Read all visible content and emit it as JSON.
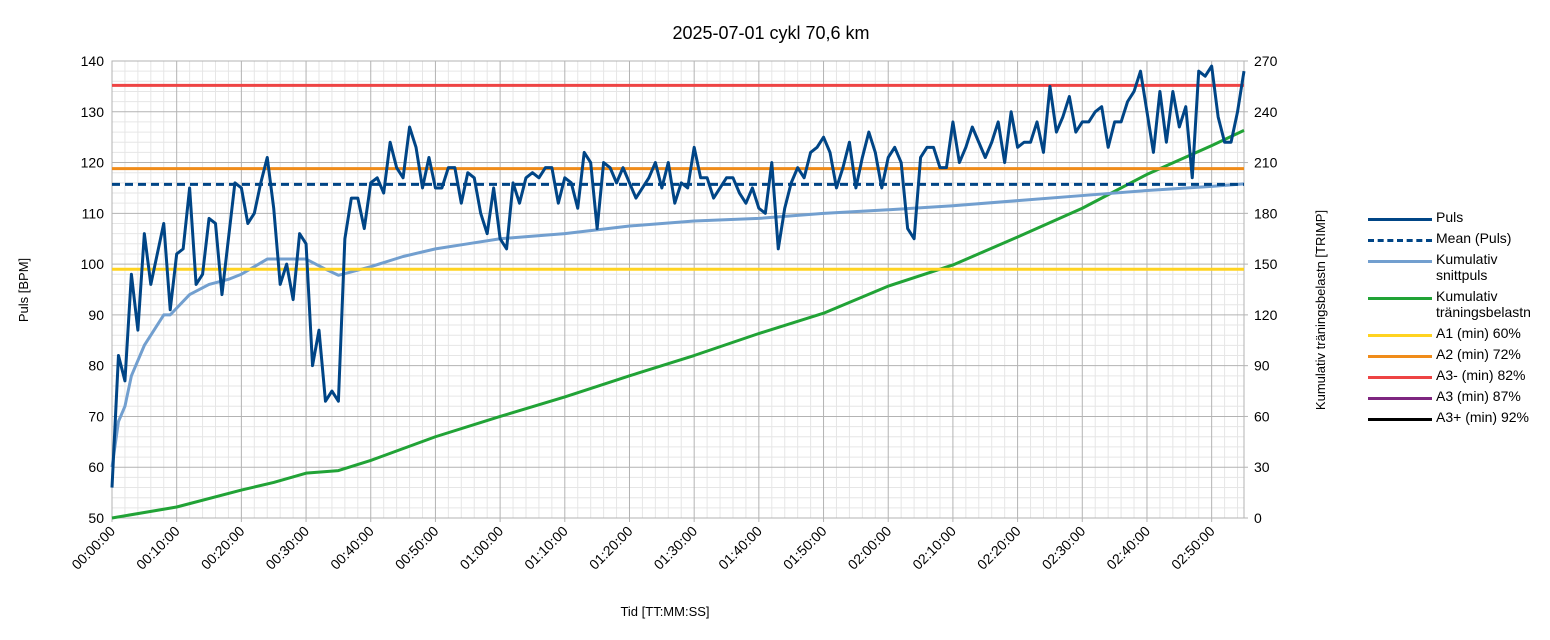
{
  "chart_data": {
    "type": "line",
    "title": "2025-07-01 cykl 70,6 km",
    "x_label": "Tid [TT:MM:SS]",
    "y_label": "Puls [BPM]",
    "y2_label": "Kumulativ träningsbelastn [TRIMP]",
    "xlim": [
      0,
      175
    ],
    "xticks": [
      {
        "value": 0,
        "label": "00:00:00"
      },
      {
        "value": 10,
        "label": "00:10:00"
      },
      {
        "value": 20,
        "label": "00:20:00"
      },
      {
        "value": 30,
        "label": "00:30:00"
      },
      {
        "value": 40,
        "label": "00:40:00"
      },
      {
        "value": 50,
        "label": "00:50:00"
      },
      {
        "value": 60,
        "label": "01:00:00"
      },
      {
        "value": 70,
        "label": "01:10:00"
      },
      {
        "value": 80,
        "label": "01:20:00"
      },
      {
        "value": 90,
        "label": "01:30:00"
      },
      {
        "value": 100,
        "label": "01:40:00"
      },
      {
        "value": 110,
        "label": "01:50:00"
      },
      {
        "value": 120,
        "label": "02:00:00"
      },
      {
        "value": 130,
        "label": "02:10:00"
      },
      {
        "value": 140,
        "label": "02:20:00"
      },
      {
        "value": 150,
        "label": "02:30:00"
      },
      {
        "value": 160,
        "label": "02:40:00"
      },
      {
        "value": 170,
        "label": "02:50:00"
      }
    ],
    "ylim": [
      50,
      140
    ],
    "yticks": [
      50,
      60,
      70,
      80,
      90,
      100,
      110,
      120,
      130,
      140
    ],
    "y2lim": [
      0,
      270
    ],
    "y2ticks": [
      0,
      30,
      60,
      90,
      120,
      150,
      180,
      210,
      240,
      270
    ],
    "grid": true,
    "minor_grid": true,
    "legend": "right",
    "series": [
      {
        "name": "Puls",
        "color": "#004586",
        "x": [
          0,
          1,
          2,
          3,
          4,
          5,
          6,
          7,
          8,
          9,
          10,
          11,
          12,
          13,
          14,
          15,
          16,
          17,
          18,
          19,
          20,
          21,
          22,
          23,
          24,
          25,
          26,
          27,
          28,
          29,
          30,
          31,
          32,
          33,
          34,
          35,
          36,
          37,
          38,
          39,
          40,
          41,
          42,
          43,
          44,
          45,
          46,
          47,
          48,
          49,
          50,
          51,
          52,
          53,
          54,
          55,
          56,
          57,
          58,
          59,
          60,
          61,
          62,
          63,
          64,
          65,
          66,
          67,
          68,
          69,
          70,
          71,
          72,
          73,
          74,
          75,
          76,
          77,
          78,
          79,
          80,
          81,
          82,
          83,
          84,
          85,
          86,
          87,
          88,
          89,
          90,
          91,
          92,
          93,
          94,
          95,
          96,
          97,
          98,
          99,
          100,
          101,
          102,
          103,
          104,
          105,
          106,
          107,
          108,
          109,
          110,
          111,
          112,
          113,
          114,
          115,
          116,
          117,
          118,
          119,
          120,
          121,
          122,
          123,
          124,
          125,
          126,
          127,
          128,
          129,
          130,
          131,
          132,
          133,
          134,
          135,
          136,
          137,
          138,
          139,
          140,
          141,
          142,
          143,
          144,
          145,
          146,
          147,
          148,
          149,
          150,
          151,
          152,
          153,
          154,
          155,
          156,
          157,
          158,
          159,
          160,
          161,
          162,
          163,
          164,
          165,
          166,
          167,
          168,
          169,
          170,
          171,
          172,
          173,
          174,
          175
        ],
        "values": [
          56,
          82,
          77,
          98,
          87,
          106,
          96,
          102,
          108,
          91,
          102,
          103,
          115,
          96,
          98,
          109,
          108,
          94,
          105,
          116,
          115,
          108,
          110,
          116,
          121,
          111,
          96,
          100,
          93,
          106,
          104,
          80,
          87,
          73,
          75,
          73,
          105,
          113,
          113,
          107,
          116,
          117,
          114,
          124,
          119,
          117,
          127,
          123,
          115,
          121,
          115,
          115,
          119,
          119,
          112,
          118,
          117,
          110,
          106,
          115,
          105,
          103,
          116,
          112,
          117,
          118,
          117,
          119,
          119,
          112,
          117,
          116,
          111,
          122,
          120,
          107,
          120,
          119,
          116,
          119,
          116,
          113,
          115,
          117,
          120,
          115,
          120,
          112,
          116,
          115,
          123,
          117,
          117,
          113,
          115,
          117,
          117,
          114,
          112,
          115,
          111,
          110,
          120,
          103,
          111,
          116,
          119,
          117,
          122,
          123,
          125,
          122,
          115,
          119,
          124,
          115,
          121,
          126,
          122,
          115,
          121,
          123,
          120,
          107,
          105,
          121,
          123,
          123,
          119,
          119,
          128,
          120,
          123,
          127,
          124,
          121,
          124,
          128,
          120,
          130,
          123,
          124,
          124,
          128,
          122,
          135,
          126,
          129,
          133,
          126,
          128,
          128,
          130,
          131,
          123,
          128,
          128,
          132,
          134,
          138,
          130,
          122,
          134,
          124,
          134,
          127,
          131,
          117,
          138,
          137,
          139,
          129,
          124,
          124,
          130,
          138
        ]
      },
      {
        "name": "Mean (Puls)",
        "color": "#004586",
        "style": "dashed",
        "value": 115.7
      },
      {
        "name": "Kumulativ snittpuls",
        "color": "#729fcf",
        "x": [
          0,
          1,
          2,
          3,
          5,
          8,
          9,
          12,
          15,
          18,
          20,
          24,
          27,
          30,
          33,
          35,
          40,
          45,
          50,
          55,
          60,
          70,
          80,
          90,
          100,
          110,
          120,
          130,
          140,
          150,
          160,
          170,
          175
        ],
        "values": [
          60,
          69,
          72,
          78,
          84,
          90,
          90,
          94,
          96,
          97,
          98,
          101,
          101,
          101,
          99,
          97.8,
          99.5,
          101.5,
          103,
          104,
          105,
          106,
          107.5,
          108.5,
          109,
          110,
          110.7,
          111.5,
          112.5,
          113.5,
          114.5,
          115.3,
          115.8
        ]
      },
      {
        "name": "Kumulativ träningsbelastn",
        "color": "#21a336",
        "axis": "y2",
        "x": [
          0,
          10,
          20,
          25,
          30,
          35,
          40,
          50,
          60,
          70,
          80,
          90,
          100,
          110,
          120,
          130,
          140,
          150,
          160,
          170,
          175
        ],
        "values": [
          0,
          6.5,
          16.5,
          21,
          26.5,
          28,
          34,
          48,
          60,
          71.5,
          84,
          96,
          109,
          121,
          137,
          149.5,
          166,
          183,
          203,
          220,
          229
        ]
      },
      {
        "name": "A1 (min) 60%",
        "color": "#ffd320",
        "value": 99
      },
      {
        "name": "A2 (min) 72%",
        "color": "#f08c1a",
        "value": 118.8
      },
      {
        "name": "A3- (min) 82%",
        "color": "#ee4444",
        "value": 135.2
      },
      {
        "name": "A3 (min) 87%",
        "color": "#7e2680",
        "value": null
      },
      {
        "name": "A3+ (min) 92%",
        "color": "#000000",
        "value": null
      }
    ]
  }
}
